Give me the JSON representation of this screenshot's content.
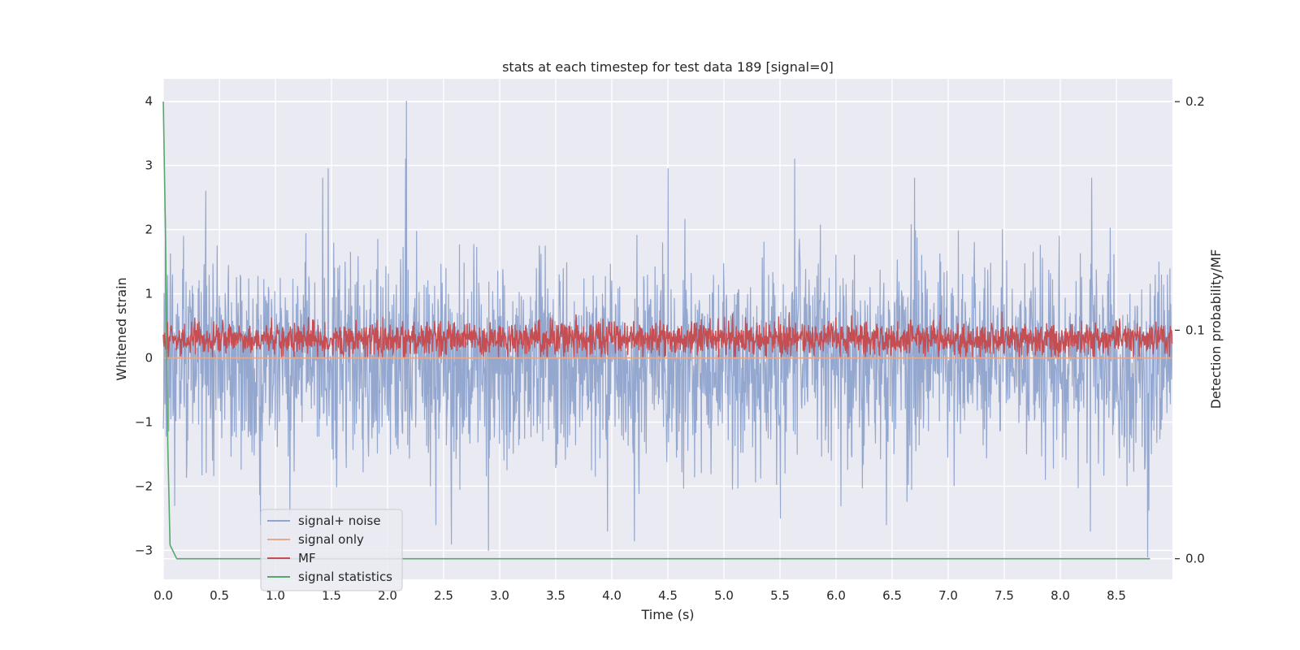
{
  "chart_data": {
    "type": "line",
    "title": "stats at each timestep for test data 189 [signal=0]",
    "xlabel": "Time (s)",
    "ylabel": "Whitened strain",
    "y2label": "Detection probability/MF",
    "xlim": [
      0.0,
      9.0
    ],
    "ylim": [
      -3.45,
      4.35
    ],
    "y2lim": [
      -0.009,
      0.21
    ],
    "xticks": [
      "0.0",
      "0.5",
      "1.0",
      "1.5",
      "2.0",
      "2.5",
      "3.0",
      "3.5",
      "4.0",
      "4.5",
      "5.0",
      "5.5",
      "6.0",
      "6.5",
      "7.0",
      "7.5",
      "8.0",
      "8.5"
    ],
    "xtick_values": [
      0.0,
      0.5,
      1.0,
      1.5,
      2.0,
      2.5,
      3.0,
      3.5,
      4.0,
      4.5,
      5.0,
      5.5,
      6.0,
      6.5,
      7.0,
      7.5,
      8.0,
      8.5
    ],
    "yticks": [
      "−3",
      "−2",
      "−1",
      "0",
      "1",
      "2",
      "3",
      "4"
    ],
    "ytick_values": [
      -3,
      -2,
      -1,
      0,
      1,
      2,
      3,
      4
    ],
    "y2ticks": [
      "0.0",
      "0.1",
      "0.2"
    ],
    "y2tick_values": [
      0.0,
      0.1,
      0.2
    ],
    "grid": true,
    "legend_position": "lower-left",
    "series": [
      {
        "name": "signal+ noise",
        "color": "#8fa3cc",
        "axis": "left",
        "kind": "noise",
        "x_range": [
          0.0,
          9.0
        ],
        "center": -0.05,
        "spread": 0.78,
        "peaks": [
          [
            0.02,
            2.2
          ],
          [
            0.38,
            2.6
          ],
          [
            1.42,
            2.8
          ],
          [
            1.47,
            2.95
          ],
          [
            2.16,
            3.1
          ],
          [
            2.17,
            4.0
          ],
          [
            4.5,
            2.95
          ],
          [
            5.63,
            3.1
          ],
          [
            6.7,
            2.8
          ],
          [
            8.28,
            2.8
          ]
        ],
        "troughs": [
          [
            0.1,
            -2.3
          ],
          [
            2.43,
            -2.6
          ],
          [
            2.57,
            -2.9
          ],
          [
            2.9,
            -3.0
          ],
          [
            3.96,
            -2.7
          ],
          [
            4.2,
            -2.85
          ],
          [
            6.45,
            -2.6
          ],
          [
            8.27,
            -2.7
          ],
          [
            8.78,
            -3.1
          ]
        ]
      },
      {
        "name": "signal only",
        "color": "#e8a98a",
        "axis": "left",
        "kind": "constant",
        "x_range": [
          0.0,
          9.0
        ],
        "value": 0.0
      },
      {
        "name": "MF",
        "color": "#c44e52",
        "axis": "left",
        "kind": "noise",
        "x_range": [
          0.0,
          9.0
        ],
        "center": 0.3,
        "spread": 0.13,
        "min": 0.02,
        "max": 0.95
      },
      {
        "name": "signal statistics",
        "color": "#55a868",
        "axis": "right",
        "x": [
          0.0,
          0.02,
          0.04,
          0.06,
          0.09,
          0.12,
          8.8
        ],
        "y": [
          0.2,
          0.14,
          0.05,
          0.006,
          0.003,
          0.0,
          0.0
        ]
      }
    ]
  }
}
